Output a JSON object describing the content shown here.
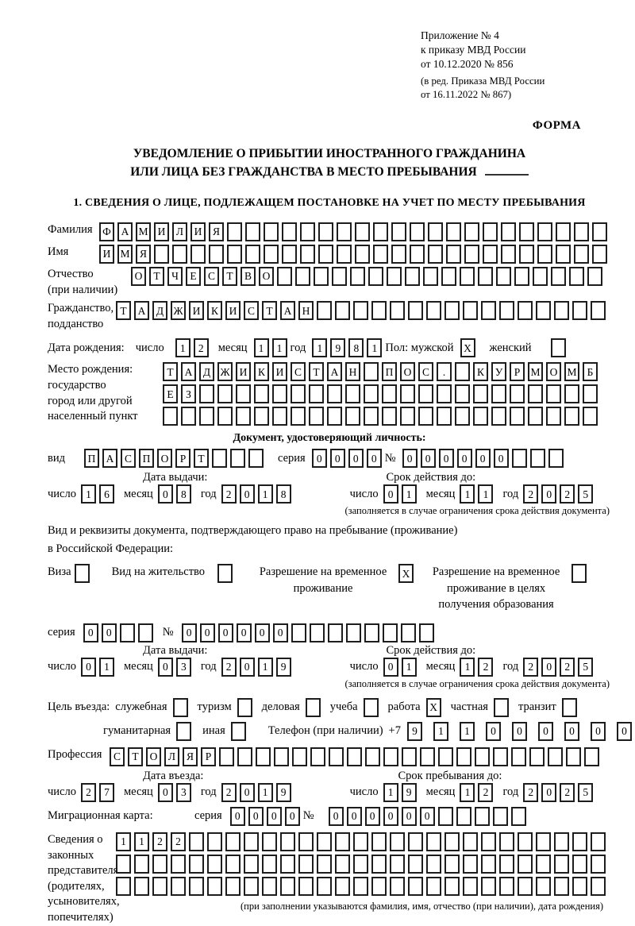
{
  "meta": {
    "appendix_lines": [
      "Приложение № 4",
      "к приказу МВД России",
      "от 10.12.2020 № 856"
    ],
    "edition_lines": [
      "(в ред. Приказа МВД России",
      "от 16.11.2022 № 867)"
    ],
    "form_label": "ФОРМА"
  },
  "title": {
    "line1": "УВЕДОМЛЕНИЕ О ПРИБЫТИИ ИНОСТРАННОГО ГРАЖДАНИНА",
    "line2": "ИЛИ ЛИЦА БЕЗ ГРАЖДАНСТВА В МЕСТО ПРЕБЫВАНИЯ"
  },
  "section1": {
    "heading": "1. СВЕДЕНИЯ О ЛИЦЕ, ПОДЛЕЖАЩЕМ ПОСТАНОВКЕ НА УЧЕТ ПО МЕСТУ ПРЕБЫВАНИЯ"
  },
  "words": {
    "day": "число",
    "month": "месяц",
    "year": "год",
    "series": "серия",
    "number": "№"
  },
  "surname": {
    "label": "Фамилия",
    "boxes": {
      "text": "ФАМИЛИЯ",
      "count": 28
    }
  },
  "given_name": {
    "label": "Имя",
    "boxes": {
      "text": "ИМЯ",
      "count": 28
    }
  },
  "patronymic": {
    "label": "Отчество",
    "label2": "(при наличии)",
    "boxes": {
      "text": "ОТЧЕСТВО",
      "count": 26
    }
  },
  "citizenship": {
    "label": "Гражданство,",
    "label2": "подданство",
    "boxes": {
      "text": "ТАДЖИКИСТАН",
      "count": 27
    }
  },
  "birth_date": {
    "label": "Дата рождения:",
    "day": {
      "text": "12",
      "count": 2
    },
    "month": {
      "text": "11",
      "count": 2
    },
    "year": {
      "text": "1981",
      "count": 4
    },
    "sex_label": "Пол: мужской",
    "male": "X",
    "female_label": "женский",
    "female": ""
  },
  "birthplace": {
    "label1": "Место рождения:",
    "label2": "государство",
    "label3": "город или другой",
    "label4": "населенный пункт",
    "row1": {
      "text": "ТАДЖИКИСТАН ПОС. КУРМОМБ",
      "count": 24
    },
    "row2": {
      "text": "ЕЗ",
      "count": 24
    },
    "row3": {
      "text": "",
      "count": 24
    }
  },
  "identity_doc": {
    "heading": "Документ, удостоверяющий личность:",
    "type_label": "вид",
    "type": {
      "text": "ПАСПОРТ",
      "count": 10
    },
    "series": {
      "text": "0000",
      "count": 4
    },
    "number": {
      "text": "000000",
      "count": 9
    },
    "issue_heading": "Дата выдачи:",
    "issue": {
      "day": {
        "text": "16",
        "count": 2
      },
      "month": {
        "text": "08",
        "count": 2
      },
      "year": {
        "text": "2018",
        "count": 4
      }
    },
    "valid_heading": "Срок действия до:",
    "valid": {
      "day": {
        "text": "01",
        "count": 2
      },
      "month": {
        "text": "11",
        "count": 2
      },
      "year": {
        "text": "2025",
        "count": 4
      }
    },
    "note": "(заполняется в случае ограничения срока действия документа)"
  },
  "residence_doc": {
    "intro1": "Вид и реквизиты документа, подтверждающего право на пребывание (проживание)",
    "intro2": "в Российской Федерации:",
    "options": [
      {
        "label": "Виза",
        "value": ""
      },
      {
        "label": "Вид на жительство",
        "value": ""
      },
      {
        "label": "Разрешение на временное проживание",
        "value": "X"
      },
      {
        "label": "Разрешение на временное проживание в целях получения образования",
        "value": ""
      }
    ],
    "series": {
      "text": "00",
      "count": 4
    },
    "number": {
      "text": "000000",
      "count": 14
    },
    "issue_heading": "Дата выдачи:",
    "issue": {
      "day": {
        "text": "01",
        "count": 2
      },
      "month": {
        "text": "03",
        "count": 2
      },
      "year": {
        "text": "2019",
        "count": 4
      }
    },
    "valid_heading": "Срок действия до:",
    "valid": {
      "day": {
        "text": "01",
        "count": 2
      },
      "month": {
        "text": "12",
        "count": 2
      },
      "year": {
        "text": "2025",
        "count": 4
      }
    },
    "note": "(заполняется в случае ограничения срока действия документа)"
  },
  "visit": {
    "label": "Цель въезда:",
    "purposes": [
      {
        "label": "служебная",
        "value": ""
      },
      {
        "label": "туризм",
        "value": ""
      },
      {
        "label": "деловая",
        "value": ""
      },
      {
        "label": "учеба",
        "value": ""
      },
      {
        "label": "работа",
        "value": "X"
      },
      {
        "label": "частная",
        "value": ""
      },
      {
        "label": "транзит",
        "value": ""
      },
      {
        "label": "гуманитарная",
        "value": ""
      },
      {
        "label": "иная",
        "value": ""
      }
    ],
    "phone_label": "Телефон (при наличии)",
    "phone_prefix": "+7",
    "phone": {
      "text": "911000000",
      "count": 10
    }
  },
  "profession": {
    "label": "Профессия",
    "boxes": {
      "text": "СТОЛЯР",
      "count": 27
    }
  },
  "entry": {
    "issue_heading": "Дата въезда:",
    "issue": {
      "day": {
        "text": "27",
        "count": 2
      },
      "month": {
        "text": "03",
        "count": 2
      },
      "year": {
        "text": "2019",
        "count": 4
      }
    },
    "valid_heading": "Срок пребывания до:",
    "valid": {
      "day": {
        "text": "19",
        "count": 2
      },
      "month": {
        "text": "12",
        "count": 2
      },
      "year": {
        "text": "2025",
        "count": 4
      }
    }
  },
  "migration_card": {
    "label": "Миграционная карта:",
    "series": {
      "text": "0000",
      "count": 4
    },
    "number": {
      "text": "000000",
      "count": 11
    }
  },
  "representatives": {
    "label_lines": [
      "Сведения о",
      "законных",
      "представителях",
      "(родителях,",
      "усыновителях,",
      "попечителях)"
    ],
    "row1": {
      "text": "1122",
      "count": 27
    },
    "row2": {
      "text": "",
      "count": 27
    },
    "row3": {
      "text": "",
      "count": 27
    },
    "note": "(при заполнении указываются фамилия, имя, отчество (при наличии), дата рождения)"
  }
}
